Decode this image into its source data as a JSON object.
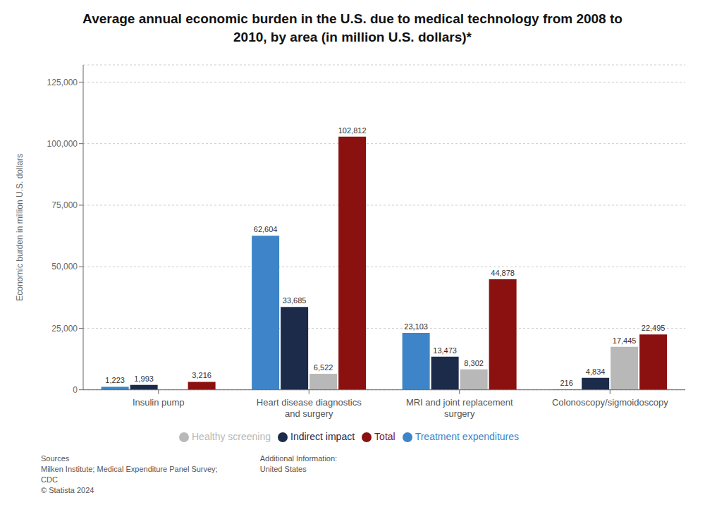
{
  "chart_data": {
    "type": "bar",
    "title": "Average annual economic burden in the U.S. due to medical technology from 2008 to\n2010, by area (in million U.S. dollars)*",
    "y_label": "Economic burden in million U.S. dollars",
    "categories": [
      "Insulin pump",
      "Heart disease diagnostics\nand surgery",
      "MRI and joint replacement\nsurgery",
      "Colonoscopy/sigmoidoscopy"
    ],
    "series": [
      {
        "name": "Treatment expenditures",
        "color": "#3d85c8",
        "values": [
          1223,
          62604,
          23103,
          216
        ],
        "value_labels": [
          "1,223",
          "62,604",
          "23,103",
          "216"
        ]
      },
      {
        "name": "Indirect impact",
        "color": "#1c2b4a",
        "values": [
          1993,
          33685,
          13473,
          4834
        ],
        "value_labels": [
          "1,993",
          "33,685",
          "13,473",
          "4,834"
        ]
      },
      {
        "name": "Healthy screening",
        "color": "#b8b8b8",
        "values": [
          0,
          6522,
          8302,
          17445
        ],
        "value_labels": [
          null,
          "6,522",
          "8,302",
          "17,445"
        ]
      },
      {
        "name": "Total",
        "color": "#8b1111",
        "values": [
          3216,
          102812,
          44878,
          22495
        ],
        "value_labels": [
          "3,216",
          "102,812",
          "44,878",
          "22,495"
        ]
      }
    ],
    "ylim": [
      0,
      132000
    ],
    "yticks": [
      0,
      {
        "value": 25000,
        "label": "25,000"
      },
      {
        "value": 50000,
        "label": "50,000"
      },
      {
        "value": 75000,
        "label": "75,000"
      },
      {
        "value": 100000,
        "label": "100,000"
      },
      {
        "value": 125000,
        "label": "125,000"
      }
    ],
    "grid": true,
    "legend": "bottom",
    "data_labels": true,
    "annotations": [
      "Sources\nMilken Institute; Medical Expenditure Panel Survey;\nCDC\n© Statista 2024",
      "Additional Information:\nUnited States"
    ]
  }
}
